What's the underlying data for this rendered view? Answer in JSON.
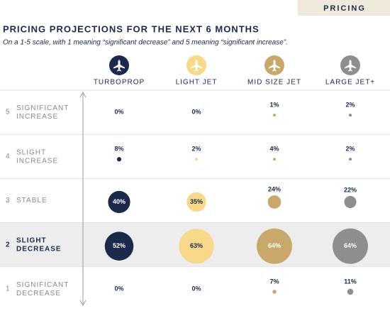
{
  "chart_data": {
    "type": "bubble-matrix",
    "tag": "PRICING",
    "title": "PRICING PROJECTIONS FOR THE NEXT 6 MONTHS",
    "subtitle": "On a 1-5 scale, with 1 meaning “significant decrease” and 5 meaning “significant increase”.",
    "row_numbers": [
      5,
      4,
      3,
      2,
      1
    ],
    "categories": [
      "SIGNIFICANT INCREASE",
      "SLIGHT INCREASE",
      "STABLE",
      "SLIGHT DECREASE",
      "SIGNIFICANT DECREASE"
    ],
    "highlight": 3,
    "series": [
      {
        "name": "TURBOPROP",
        "color": "#1b2a4a",
        "values": [
          0,
          8,
          40,
          52,
          0
        ],
        "value_labels": [
          "0%",
          "8%",
          "40%",
          "52%",
          "0%"
        ]
      },
      {
        "name": "LIGHT JET",
        "color": "#f8d889",
        "values": [
          0,
          2,
          35,
          63,
          0
        ],
        "value_labels": [
          "0%",
          "2%",
          "35%",
          "63%",
          "0%"
        ]
      },
      {
        "name": "MID SIZE JET",
        "color": "#c8a96b",
        "values": [
          1,
          4,
          24,
          64,
          7
        ],
        "value_labels": [
          "1%",
          "4%",
          "24%",
          "64%",
          "7%"
        ]
      },
      {
        "name": "LARGE JET+",
        "color": "#8e8e8e",
        "values": [
          2,
          2,
          22,
          64,
          11
        ],
        "value_labels": [
          "2%",
          "2%",
          "22%",
          "64%",
          "11%"
        ]
      }
    ]
  }
}
